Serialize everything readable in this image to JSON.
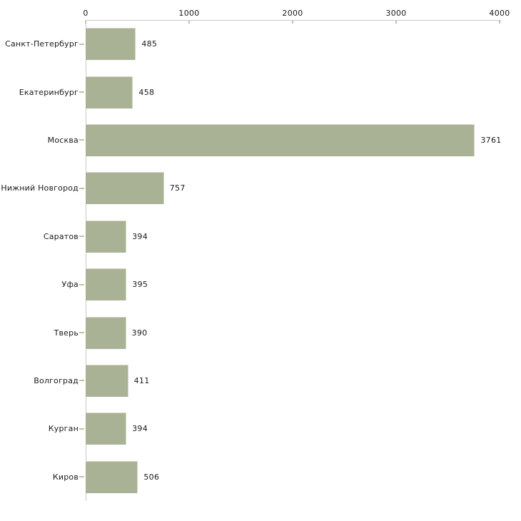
{
  "chart_data": {
    "type": "bar",
    "orientation": "horizontal",
    "title": "",
    "categories": [
      "Санкт-Петербург",
      "Екатеринбург",
      "Москва",
      "Нижний Новгород",
      "Саратов",
      "Уфа",
      "Тверь",
      "Волгоград",
      "Курган",
      "Киров"
    ],
    "values": [
      485,
      458,
      3761,
      757,
      394,
      395,
      390,
      411,
      394,
      506
    ],
    "x_ticks": [
      0,
      1000,
      2000,
      3000,
      4000
    ],
    "xlim": [
      0,
      4000
    ],
    "xlabel": "",
    "ylabel": "",
    "grid": false,
    "legend": false,
    "value_labels_shown": true,
    "axis_position": "top",
    "colors": {
      "bar_fill": "#aab296",
      "bar_highlight": "#d4d7c4",
      "axis_line": "#c9c9c9",
      "tick_mark": "#bfc49d",
      "text": "#1a1a1a",
      "background": "#ffffff"
    }
  }
}
